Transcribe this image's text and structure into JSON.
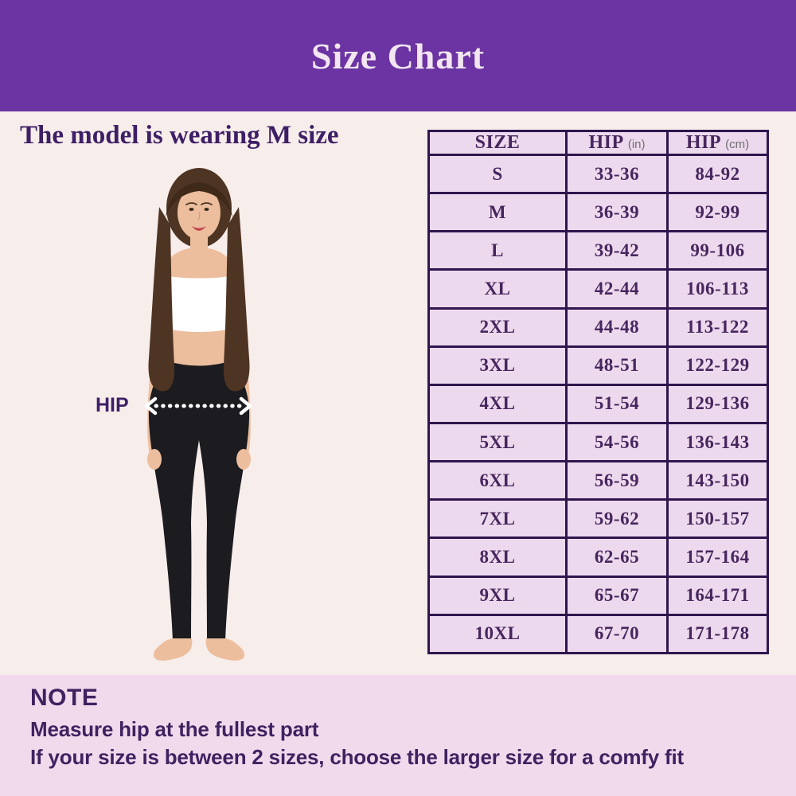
{
  "header": {
    "title": "Size Chart"
  },
  "model": {
    "caption": "The model is wearing M size",
    "hip_label": "HIP"
  },
  "table": {
    "columns": [
      {
        "label": "SIZE",
        "unit": ""
      },
      {
        "label": "HIP",
        "unit": "(in)"
      },
      {
        "label": "HIP",
        "unit": "(cm)"
      }
    ],
    "rows": [
      {
        "size": "S",
        "hip_in": "33-36",
        "hip_cm": "84-92"
      },
      {
        "size": "M",
        "hip_in": "36-39",
        "hip_cm": "92-99"
      },
      {
        "size": "L",
        "hip_in": "39-42",
        "hip_cm": "99-106"
      },
      {
        "size": "XL",
        "hip_in": "42-44",
        "hip_cm": "106-113"
      },
      {
        "size": "2XL",
        "hip_in": "44-48",
        "hip_cm": "113-122"
      },
      {
        "size": "3XL",
        "hip_in": "48-51",
        "hip_cm": "122-129"
      },
      {
        "size": "4XL",
        "hip_in": "51-54",
        "hip_cm": "129-136"
      },
      {
        "size": "5XL",
        "hip_in": "54-56",
        "hip_cm": "136-143"
      },
      {
        "size": "6XL",
        "hip_in": "56-59",
        "hip_cm": "143-150"
      },
      {
        "size": "7XL",
        "hip_in": "59-62",
        "hip_cm": "150-157"
      },
      {
        "size": "8XL",
        "hip_in": "62-65",
        "hip_cm": "157-164"
      },
      {
        "size": "9XL",
        "hip_in": "65-67",
        "hip_cm": "164-171"
      },
      {
        "size": "10XL",
        "hip_in": "67-70",
        "hip_cm": "171-178"
      }
    ]
  },
  "note": {
    "title": "NOTE",
    "lines": [
      "Measure hip at the fullest part",
      "If your size is between 2 sizes, choose the larger size for a comfy fit"
    ]
  },
  "colors": {
    "header_bg": "#6B34A2",
    "title_text": "#F2E6F0",
    "page_bg": "#F7EDEA",
    "text_purple": "#3E1F66",
    "table_border": "#2E164E",
    "cell_bg": "#EDD9ED",
    "cell_text": "#47265E",
    "unit_text": "#6F6F6F",
    "note_bg": "#F0DAEC",
    "note_text": "#3F2260",
    "arrow_white": "#FFFFFF",
    "skin_color": "#ECBE9E",
    "hair_color": "#4E3423",
    "hair_dark": "#3F2A1A",
    "top_color": "#FFFFFF",
    "leggings_color": "#1B1B20",
    "lip_color": "#C2474F"
  }
}
